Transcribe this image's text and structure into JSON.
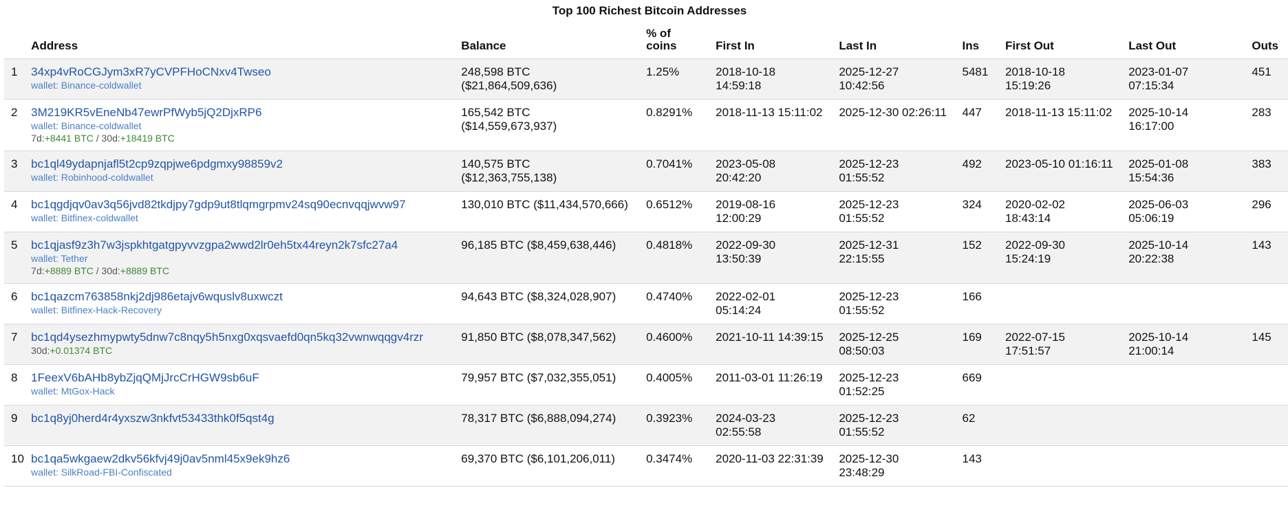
{
  "page_title": "Top 100 Richest Bitcoin Addresses",
  "columns": [
    "Address",
    "Balance",
    "% of coins",
    "First In",
    "Last In",
    "Ins",
    "First Out",
    "Last Out",
    "Outs"
  ],
  "rows": [
    {
      "num": "1",
      "address": "34xp4vRoCGJym3xR7yCVPFHoCNxv4Twseo",
      "wallet": "wallet: Binance-coldwallet",
      "delta": null,
      "balance_btc": "248,598 BTC",
      "balance_usd": "($21,864,509,636)",
      "pct": "1.25%",
      "first_in": [
        "2018-10-18",
        "14:59:18"
      ],
      "last_in": [
        "2025-12-27",
        "10:42:56"
      ],
      "ins": "5481",
      "first_out": [
        "2018-10-18",
        "15:19:26"
      ],
      "last_out": [
        "2023-01-07",
        "07:15:34"
      ],
      "outs": "451"
    },
    {
      "num": "2",
      "address": "3M219KR5vEneNb47ewrPfWyb5jQ2DjxRP6",
      "wallet": "wallet: Binance-coldwallet",
      "delta": {
        "d7_label": "7d:",
        "d7": "+8441 BTC",
        "sep": " / ",
        "d30_label": "30d:",
        "d30": "+18419 BTC"
      },
      "balance_btc": "165,542 BTC",
      "balance_usd": "($14,559,673,937)",
      "pct": "0.8291%",
      "first_in": [
        "2018-11-13 15:11:02",
        ""
      ],
      "last_in": [
        "2025-12-30 02:26:11",
        ""
      ],
      "ins": "447",
      "first_out": [
        "2018-11-13 15:11:02",
        ""
      ],
      "last_out": [
        "2025-10-14",
        "16:17:00"
      ],
      "outs": "283"
    },
    {
      "num": "3",
      "address": "bc1ql49ydapnjafl5t2cp9zqpjwe6pdgmxy98859v2",
      "wallet": "wallet: Robinhood-coldwallet",
      "delta": null,
      "balance_btc": "140,575 BTC",
      "balance_usd": "($12,363,755,138)",
      "pct": "0.7041%",
      "first_in": [
        "2023-05-08",
        "20:42:20"
      ],
      "last_in": [
        "2025-12-23",
        "01:55:52"
      ],
      "ins": "492",
      "first_out": [
        "2023-05-10 01:16:11",
        ""
      ],
      "last_out": [
        "2025-01-08",
        "15:54:36"
      ],
      "outs": "383"
    },
    {
      "num": "4",
      "address": "bc1qgdjqv0av3q56jvd82tkdjpy7gdp9ut8tlqmgrpmv24sq90ecnvqqjwvw97",
      "wallet": "wallet: Bitfinex-coldwallet",
      "delta": null,
      "balance_btc": "130,010 BTC ($11,434,570,666)",
      "balance_usd": "",
      "pct": "0.6512%",
      "first_in": [
        "2019-08-16",
        "12:00:29"
      ],
      "last_in": [
        "2025-12-23",
        "01:55:52"
      ],
      "ins": "324",
      "first_out": [
        "2020-02-02",
        "18:43:14"
      ],
      "last_out": [
        "2025-06-03",
        "05:06:19"
      ],
      "outs": "296"
    },
    {
      "num": "5",
      "address": "bc1qjasf9z3h7w3jspkhtgatgpyvvzgpa2wwd2lr0eh5tx44reyn2k7sfc27a4",
      "wallet": "wallet: Tether",
      "delta": {
        "d7_label": "7d:",
        "d7": "+8889 BTC",
        "sep": " / ",
        "d30_label": "30d:",
        "d30": "+8889 BTC"
      },
      "balance_btc": "96,185 BTC ($8,459,638,446)",
      "balance_usd": "",
      "pct": "0.4818%",
      "first_in": [
        "2022-09-30",
        "13:50:39"
      ],
      "last_in": [
        "2025-12-31",
        "22:15:55"
      ],
      "ins": "152",
      "first_out": [
        "2022-09-30",
        "15:24:19"
      ],
      "last_out": [
        "2025-10-14",
        "20:22:38"
      ],
      "outs": "143"
    },
    {
      "num": "6",
      "address": "bc1qazcm763858nkj2dj986etajv6wquslv8uxwczt",
      "wallet": "wallet: Bitfinex-Hack-Recovery",
      "delta": null,
      "balance_btc": "94,643 BTC ($8,324,028,907)",
      "balance_usd": "",
      "pct": "0.4740%",
      "first_in": [
        "2022-02-01",
        "05:14:24"
      ],
      "last_in": [
        "2025-12-23",
        "01:55:52"
      ],
      "ins": "166",
      "first_out": [
        "",
        ""
      ],
      "last_out": [
        "",
        ""
      ],
      "outs": ""
    },
    {
      "num": "7",
      "address": "bc1qd4ysezhmypwty5dnw7c8nqy5h5nxg0xqsvaefd0qn5kq32vwnwqqgv4rzr",
      "wallet": "",
      "delta": {
        "d7_label": "",
        "d7": "",
        "sep": "",
        "d30_label": "30d:",
        "d30": "+0.01374 BTC"
      },
      "balance_btc": "91,850 BTC ($8,078,347,562)",
      "balance_usd": "",
      "pct": "0.4600%",
      "first_in": [
        "2021-10-11 14:39:15",
        ""
      ],
      "last_in": [
        "2025-12-25",
        "08:50:03"
      ],
      "ins": "169",
      "first_out": [
        "2022-07-15",
        "17:51:57"
      ],
      "last_out": [
        "2025-10-14",
        "21:00:14"
      ],
      "outs": "145"
    },
    {
      "num": "8",
      "address": "1FeexV6bAHb8ybZjqQMjJrcCrHGW9sb6uF",
      "wallet": "wallet: MtGox-Hack",
      "delta": null,
      "balance_btc": "79,957 BTC ($7,032,355,051)",
      "balance_usd": "",
      "pct": "0.4005%",
      "first_in": [
        "2011-03-01 11:26:19",
        ""
      ],
      "last_in": [
        "2025-12-23",
        "01:52:25"
      ],
      "ins": "669",
      "first_out": [
        "",
        ""
      ],
      "last_out": [
        "",
        ""
      ],
      "outs": ""
    },
    {
      "num": "9",
      "address": "bc1q8yj0herd4r4yxszw3nkfvt53433thk0f5qst4g",
      "wallet": "",
      "delta": null,
      "balance_btc": "78,317 BTC ($6,888,094,274)",
      "balance_usd": "",
      "pct": "0.3923%",
      "first_in": [
        "2024-03-23",
        "02:55:58"
      ],
      "last_in": [
        "2025-12-23",
        "01:55:52"
      ],
      "ins": "62",
      "first_out": [
        "",
        ""
      ],
      "last_out": [
        "",
        ""
      ],
      "outs": ""
    },
    {
      "num": "10",
      "address": "bc1qa5wkgaew2dkv56kfvj49j0av5nml45x9ek9hz6",
      "wallet": "wallet: SilkRoad-FBI-Confiscated",
      "delta": null,
      "balance_btc": "69,370 BTC ($6,101,206,011)",
      "balance_usd": "",
      "pct": "0.3474%",
      "first_in": [
        "2020-11-03 22:31:39",
        ""
      ],
      "last_in": [
        "2025-12-30",
        "23:48:29"
      ],
      "ins": "143",
      "first_out": [
        "",
        ""
      ],
      "last_out": [
        "",
        ""
      ],
      "outs": ""
    }
  ]
}
